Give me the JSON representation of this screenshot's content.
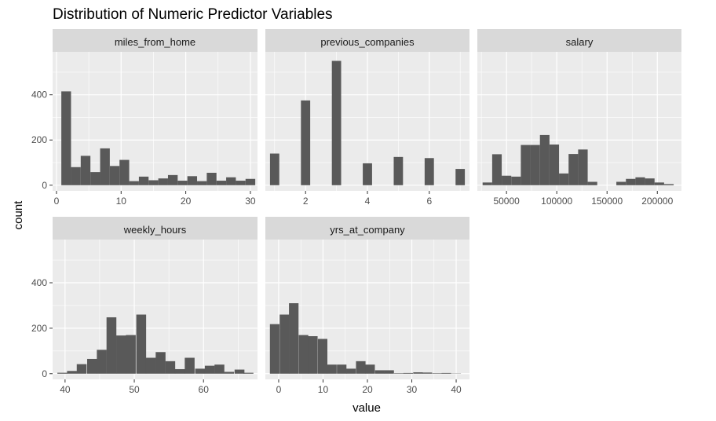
{
  "chart_data": {
    "type": "bar",
    "title": "Distribution of Numeric Predictor Variables",
    "xlabel": "value",
    "ylabel": "count",
    "ylim": [
      -25,
      590
    ],
    "y_ticks": [
      0,
      200,
      400
    ],
    "colors": {
      "panel": "#ebebeb",
      "strip": "#d9d9d9",
      "grid": "#ffffff",
      "bar": "#595959"
    },
    "panels": [
      {
        "name": "miles_from_home",
        "xlim": [
          -0.6,
          31.1
        ],
        "x_ticks": [
          0,
          10,
          20,
          30
        ],
        "bin_width": 1.5,
        "bins": [
          {
            "x": 1.5,
            "count": 415
          },
          {
            "x": 3.0,
            "count": 80
          },
          {
            "x": 4.5,
            "count": 130
          },
          {
            "x": 6.0,
            "count": 58
          },
          {
            "x": 7.5,
            "count": 163
          },
          {
            "x": 9.0,
            "count": 85
          },
          {
            "x": 10.5,
            "count": 112
          },
          {
            "x": 12.0,
            "count": 18
          },
          {
            "x": 13.5,
            "count": 38
          },
          {
            "x": 15.0,
            "count": 22
          },
          {
            "x": 16.5,
            "count": 30
          },
          {
            "x": 18.0,
            "count": 45
          },
          {
            "x": 19.5,
            "count": 20
          },
          {
            "x": 21.0,
            "count": 40
          },
          {
            "x": 22.5,
            "count": 18
          },
          {
            "x": 24.0,
            "count": 55
          },
          {
            "x": 25.5,
            "count": 20
          },
          {
            "x": 27.0,
            "count": 35
          },
          {
            "x": 28.5,
            "count": 20
          },
          {
            "x": 30.0,
            "count": 28
          }
        ]
      },
      {
        "name": "previous_companies",
        "xlim": [
          0.7,
          7.3
        ],
        "x_ticks": [
          2,
          4,
          6
        ],
        "bin_width": 0.3,
        "bins": [
          {
            "x": 1,
            "count": 140
          },
          {
            "x": 2,
            "count": 375
          },
          {
            "x": 3,
            "count": 550
          },
          {
            "x": 4,
            "count": 97
          },
          {
            "x": 5,
            "count": 125
          },
          {
            "x": 6,
            "count": 120
          },
          {
            "x": 7,
            "count": 72
          }
        ]
      },
      {
        "name": "salary",
        "xlim": [
          21000,
          224000
        ],
        "x_ticks": [
          50000,
          100000,
          150000,
          200000
        ],
        "tick_labels": [
          "50000",
          "100000",
          "150000",
          "200000"
        ],
        "bin_width": 9500,
        "bins": [
          {
            "x": 31000,
            "count": 12
          },
          {
            "x": 40500,
            "count": 137
          },
          {
            "x": 50000,
            "count": 42
          },
          {
            "x": 59500,
            "count": 38
          },
          {
            "x": 69000,
            "count": 178
          },
          {
            "x": 78500,
            "count": 178
          },
          {
            "x": 88000,
            "count": 222
          },
          {
            "x": 97500,
            "count": 180
          },
          {
            "x": 107000,
            "count": 52
          },
          {
            "x": 116500,
            "count": 138
          },
          {
            "x": 126000,
            "count": 158
          },
          {
            "x": 135500,
            "count": 15
          },
          {
            "x": 145000,
            "count": 0
          },
          {
            "x": 154500,
            "count": 0
          },
          {
            "x": 164000,
            "count": 15
          },
          {
            "x": 173500,
            "count": 28
          },
          {
            "x": 183000,
            "count": 35
          },
          {
            "x": 192500,
            "count": 30
          },
          {
            "x": 202000,
            "count": 12
          },
          {
            "x": 211500,
            "count": 5
          }
        ]
      },
      {
        "name": "weekly_hours",
        "xlim": [
          38.2,
          67.8
        ],
        "x_ticks": [
          40,
          50,
          60
        ],
        "bin_width": 1.42,
        "bins": [
          {
            "x": 39.6,
            "count": 4
          },
          {
            "x": 41.0,
            "count": 12
          },
          {
            "x": 42.4,
            "count": 42
          },
          {
            "x": 43.9,
            "count": 65
          },
          {
            "x": 45.3,
            "count": 105
          },
          {
            "x": 46.7,
            "count": 248
          },
          {
            "x": 48.1,
            "count": 168
          },
          {
            "x": 49.5,
            "count": 170
          },
          {
            "x": 51.0,
            "count": 260
          },
          {
            "x": 52.4,
            "count": 70
          },
          {
            "x": 53.8,
            "count": 95
          },
          {
            "x": 55.2,
            "count": 55
          },
          {
            "x": 56.6,
            "count": 20
          },
          {
            "x": 58.0,
            "count": 70
          },
          {
            "x": 59.5,
            "count": 22
          },
          {
            "x": 60.9,
            "count": 35
          },
          {
            "x": 62.3,
            "count": 40
          },
          {
            "x": 63.7,
            "count": 8
          },
          {
            "x": 65.2,
            "count": 18
          },
          {
            "x": 66.5,
            "count": 4
          }
        ]
      },
      {
        "name": "yrs_at_company",
        "xlim": [
          -3.0,
          43.0
        ],
        "x_ticks": [
          0,
          10,
          20,
          30,
          40
        ],
        "bin_width": 2.15,
        "bins": [
          {
            "x": -0.9,
            "count": 218
          },
          {
            "x": 1.3,
            "count": 260
          },
          {
            "x": 3.4,
            "count": 310
          },
          {
            "x": 5.6,
            "count": 170
          },
          {
            "x": 7.7,
            "count": 165
          },
          {
            "x": 9.9,
            "count": 153
          },
          {
            "x": 12.0,
            "count": 40
          },
          {
            "x": 14.2,
            "count": 40
          },
          {
            "x": 16.3,
            "count": 22
          },
          {
            "x": 18.5,
            "count": 55
          },
          {
            "x": 20.6,
            "count": 40
          },
          {
            "x": 22.8,
            "count": 15
          },
          {
            "x": 24.9,
            "count": 15
          },
          {
            "x": 27.1,
            "count": 2
          },
          {
            "x": 29.2,
            "count": 3
          },
          {
            "x": 31.4,
            "count": 6
          },
          {
            "x": 33.5,
            "count": 5
          },
          {
            "x": 35.7,
            "count": 2
          },
          {
            "x": 37.8,
            "count": 3
          },
          {
            "x": 40.0,
            "count": 1
          }
        ]
      }
    ]
  }
}
